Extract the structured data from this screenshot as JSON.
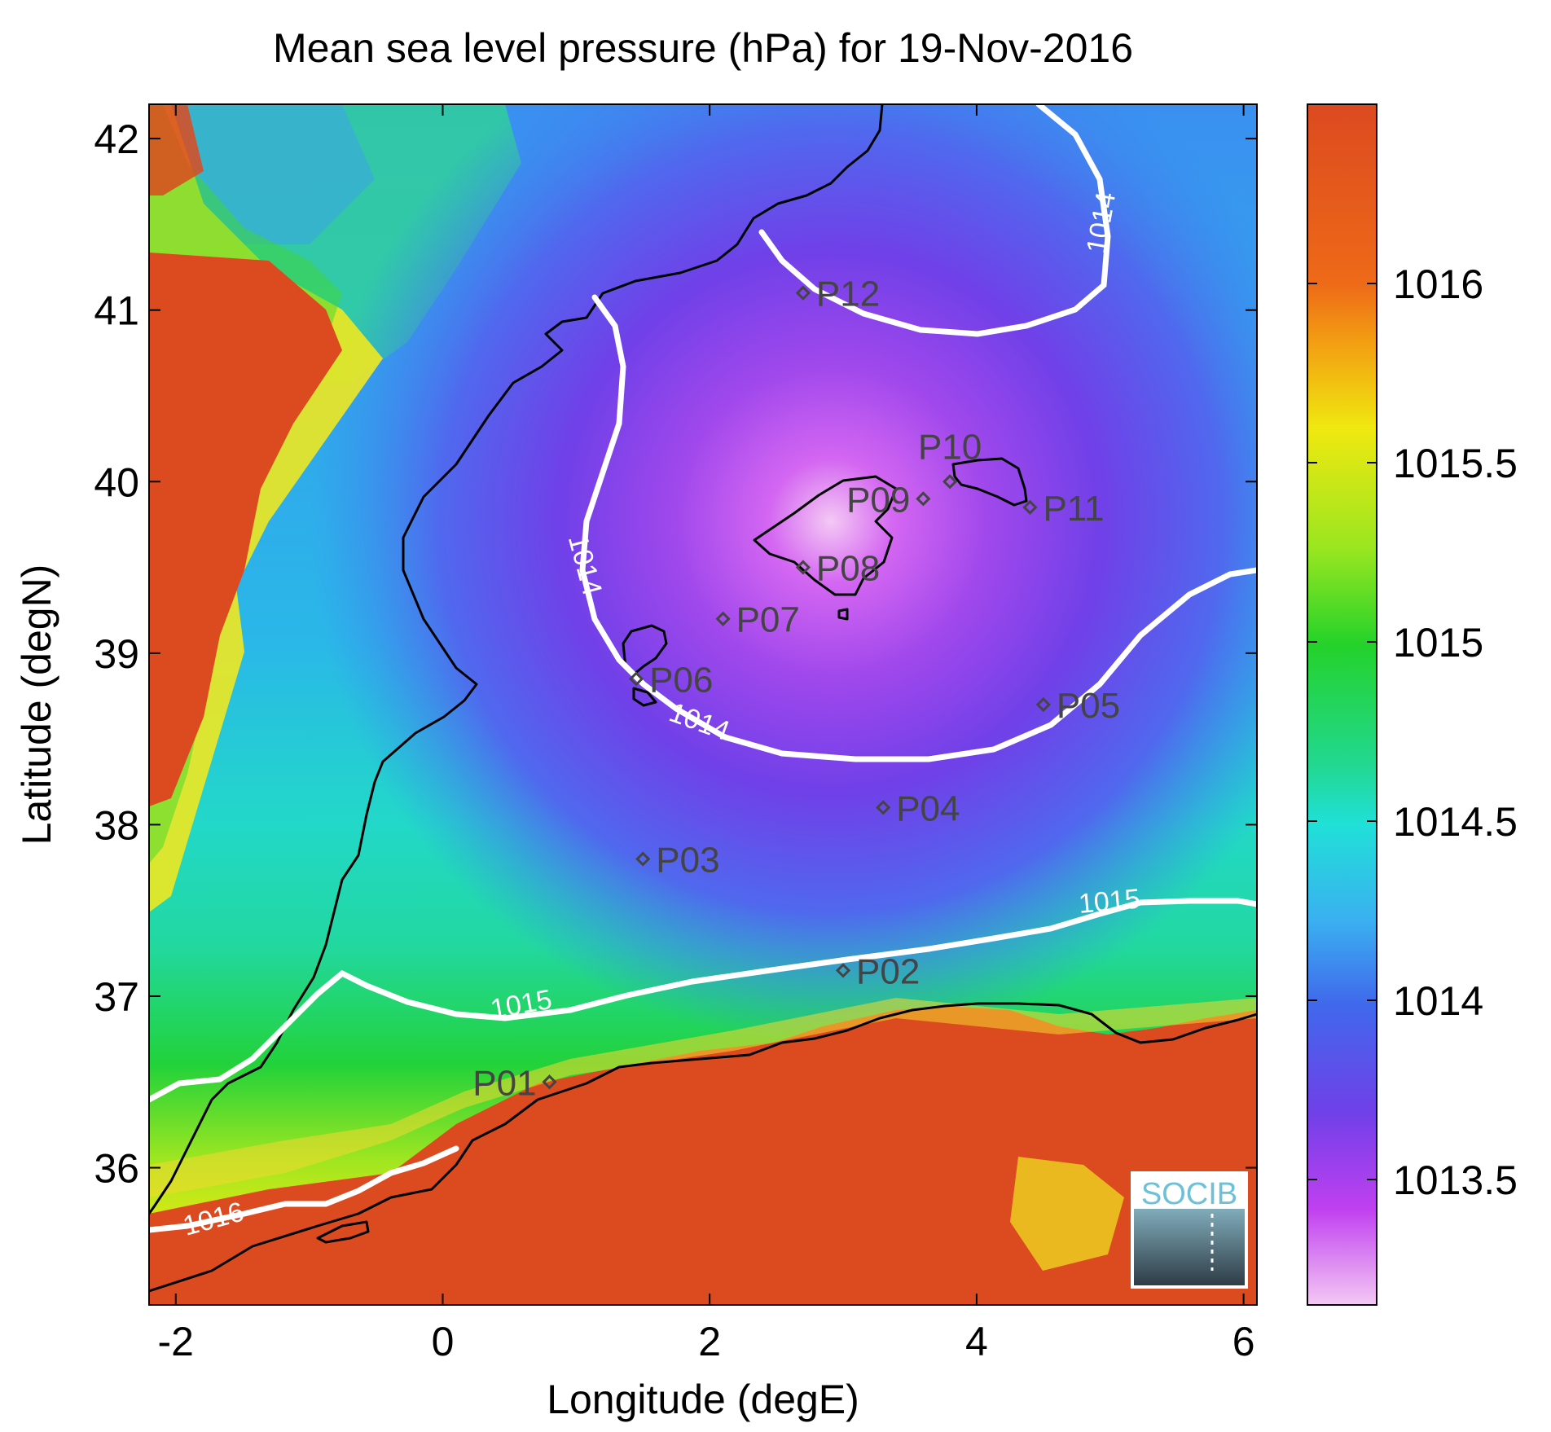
{
  "title": "Mean sea level pressure (hPa) for 19-Nov-2016",
  "xlabel": "Longitude (degE)",
  "ylabel": "Latitude (degN)",
  "x_ticks": [
    "-2",
    "0",
    "2",
    "4",
    "6"
  ],
  "y_ticks": [
    "42",
    "41",
    "40",
    "39",
    "38",
    "37",
    "36"
  ],
  "colorbar_ticks": [
    "1016",
    "1015.5",
    "1015",
    "1014.5",
    "1014",
    "1013.5"
  ],
  "colors": {
    "high": "#dc4a20",
    "yellow": "#f0ea10",
    "green": "#22d22e",
    "cyan": "#20e0d8",
    "blue": "#3a8af0",
    "violet": "#7040e8",
    "magenta": "#c838f0",
    "pink": "#f4c8f4"
  },
  "logo": {
    "text": "SOCIB"
  },
  "map_data": {
    "x_range": [
      -2.2,
      6.1
    ],
    "y_range": [
      35.2,
      42.2
    ],
    "colorbar_range": [
      1013.15,
      1016.5
    ],
    "stations": [
      {
        "label": "P01",
        "lon": 0.8,
        "lat": 36.5
      },
      {
        "label": "P02",
        "lon": 3.0,
        "lat": 37.15
      },
      {
        "label": "P03",
        "lon": 1.5,
        "lat": 37.8
      },
      {
        "label": "P04",
        "lon": 3.3,
        "lat": 38.1
      },
      {
        "label": "P05",
        "lon": 4.5,
        "lat": 38.7
      },
      {
        "label": "P06",
        "lon": 1.45,
        "lat": 38.85
      },
      {
        "label": "P07",
        "lon": 2.1,
        "lat": 39.2
      },
      {
        "label": "P08",
        "lon": 2.7,
        "lat": 39.5
      },
      {
        "label": "P09",
        "lon": 3.6,
        "lat": 39.9
      },
      {
        "label": "P10",
        "lon": 3.8,
        "lat": 40.0
      },
      {
        "label": "P11",
        "lon": 4.4,
        "lat": 39.85
      },
      {
        "label": "P12",
        "lon": 2.7,
        "lat": 41.1
      }
    ],
    "contour_labels": [
      {
        "text": "1014",
        "lon": 5.0,
        "lat": 41.5
      },
      {
        "text": "1014",
        "lon": 1.0,
        "lat": 39.5
      },
      {
        "text": "1014",
        "lon": 1.9,
        "lat": 38.55
      },
      {
        "text": "1015",
        "lon": 0.6,
        "lat": 36.9
      },
      {
        "text": "1015",
        "lon": 5.0,
        "lat": 37.5
      },
      {
        "text": "1016",
        "lon": -1.7,
        "lat": 35.65
      }
    ]
  }
}
